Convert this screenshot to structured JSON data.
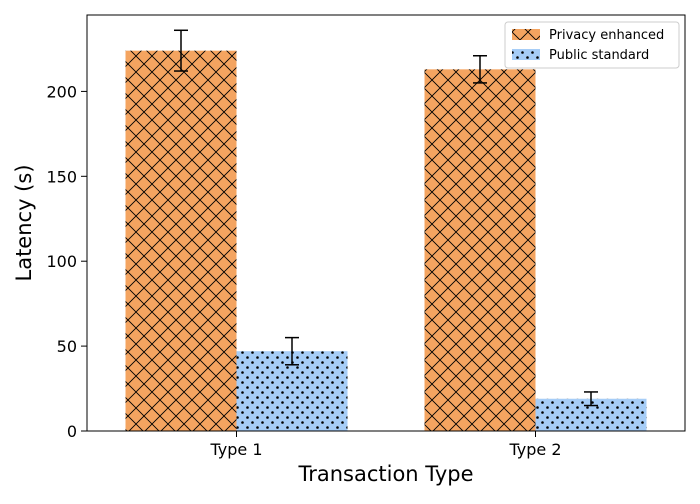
{
  "chart_data": {
    "type": "bar",
    "title": "",
    "xlabel": "Transaction Type",
    "ylabel": "Latency (s)",
    "categories": [
      "Type 1",
      "Type 2"
    ],
    "ylim": [
      0,
      245
    ],
    "yticks": [
      0,
      50,
      100,
      150,
      200
    ],
    "grid": false,
    "legend_position": "top-right",
    "series": [
      {
        "name": "Privacy enhanced",
        "values": [
          224,
          213
        ],
        "errors": [
          12,
          8
        ],
        "color": "#f4a460",
        "hatch": "cross-hatch"
      },
      {
        "name": "Public standard",
        "values": [
          47,
          19
        ],
        "errors": [
          8,
          4
        ],
        "color": "#a6cdf7",
        "hatch": "dots"
      }
    ]
  }
}
